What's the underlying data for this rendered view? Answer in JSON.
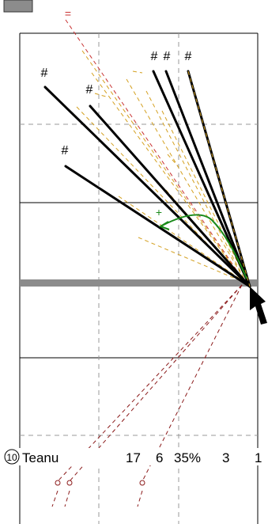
{
  "corner_tab": {
    "fill": "#8c8c8c"
  },
  "annotation_marks": {
    "equals": "=",
    "plus": "+",
    "hashes": [
      "#",
      "#",
      "#",
      "#",
      "#",
      "#"
    ]
  },
  "player_row": {
    "badge": "10",
    "name": "Teanu",
    "stats": [
      "17",
      "6",
      "35%",
      "3",
      "1"
    ]
  },
  "colors": {
    "frame": "#000000",
    "grid_dashed": "#999999",
    "band": "#8c8c8c",
    "arrow_black": "#000000",
    "arrow_green": "#1a8a1a",
    "dashed_red": "#c83232",
    "dashed_dark_red": "#8b1a1a",
    "dashed_orange": "#d4a020"
  }
}
